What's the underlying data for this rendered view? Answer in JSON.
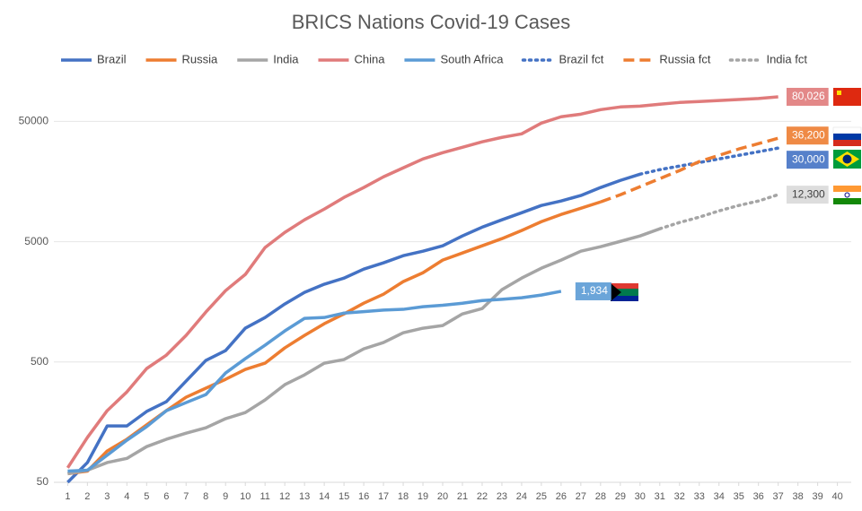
{
  "chart_data": {
    "type": "line",
    "title": "BRICS Nations Covid-19 Cases",
    "x": [
      1,
      2,
      3,
      4,
      5,
      6,
      7,
      8,
      9,
      10,
      11,
      12,
      13,
      14,
      15,
      16,
      17,
      18,
      19,
      20,
      21,
      22,
      23,
      24,
      25,
      26,
      27,
      28,
      29,
      30,
      31,
      32,
      33,
      34,
      35,
      36,
      37
    ],
    "xlim": [
      0.3,
      40.7
    ],
    "xticks": [
      1,
      2,
      3,
      4,
      5,
      6,
      7,
      8,
      9,
      10,
      11,
      12,
      13,
      14,
      15,
      16,
      17,
      18,
      19,
      20,
      21,
      22,
      23,
      24,
      25,
      26,
      27,
      28,
      29,
      30,
      31,
      32,
      33,
      34,
      35,
      36,
      37,
      38,
      39,
      40
    ],
    "ylim": [
      50,
      100000
    ],
    "yticks": [
      50,
      500,
      5000,
      50000
    ],
    "log_y": true,
    "grid": true,
    "legend": "top",
    "series": [
      {
        "name": "Brazil",
        "color": "#4472c4",
        "dash": "solid",
        "values": [
          50,
          73,
          147,
          147,
          194,
          234,
          347,
          515,
          622,
          955,
          1172,
          1517,
          1895,
          2215,
          2490,
          2960,
          3335,
          3825,
          4170,
          4620,
          5580,
          6600,
          7600,
          8700,
          10000,
          10900,
          12100,
          14100,
          16150,
          18200,
          null,
          null,
          null,
          null,
          null,
          null,
          null
        ]
      },
      {
        "name": "Russia",
        "color": "#ed7d31",
        "dash": "solid",
        "values": [
          59,
          62,
          91,
          114,
          150,
          197,
          255,
          303,
          359,
          434,
          489,
          655,
          832,
          1040,
          1255,
          1542,
          1830,
          2330,
          2760,
          3515,
          4030,
          4620,
          5300,
          6190,
          7340,
          8420,
          9480,
          10700,
          null,
          null,
          null,
          null,
          null,
          null,
          null,
          null,
          null
        ]
      },
      {
        "name": "India",
        "color": "#a5a5a5",
        "dash": "solid",
        "values": [
          59,
          63,
          73,
          79,
          99,
          114,
          128,
          142,
          169,
          190,
          242,
          324,
          391,
          489,
          524,
          643,
          726,
          875,
          955,
          1005,
          1255,
          1390,
          1995,
          2490,
          3010,
          3515,
          4170,
          4540,
          5030,
          5580,
          6400,
          null,
          null,
          null,
          null,
          null,
          null
        ]
      },
      {
        "name": "China",
        "color": "#e07b7b",
        "dash": "solid",
        "values": [
          66,
          118,
          197,
          282,
          441,
          570,
          832,
          1300,
          1960,
          2670,
          4470,
          5970,
          7600,
          9330,
          11660,
          14100,
          17300,
          20550,
          24370,
          27480,
          30470,
          33800,
          36800,
          39400,
          48400,
          54600,
          57400,
          62600,
          65900,
          67000,
          69400,
          71800,
          73100,
          74600,
          76000,
          77500,
          80026
        ],
        "value_labels": [
          null,
          null,
          null,
          null,
          null,
          null,
          null,
          null,
          null,
          null,
          null,
          null,
          null,
          null,
          null,
          null,
          null,
          null,
          null,
          null,
          null,
          null,
          null,
          null,
          null,
          null,
          null,
          null,
          null,
          null,
          null,
          null,
          null,
          null,
          null,
          null,
          "80,026"
        ]
      },
      {
        "name": "South Africa",
        "color": "#5b9bd5",
        "dash": "solid",
        "values": [
          62,
          63,
          84,
          112,
          145,
          197,
          230,
          268,
          405,
          533,
          690,
          906,
          1153,
          1172,
          1275,
          1310,
          1350,
          1370,
          1440,
          1480,
          1540,
          1620,
          1660,
          1710,
          1800,
          1934,
          null,
          null,
          null,
          null,
          null,
          null,
          null,
          null,
          null,
          null,
          null
        ],
        "value_labels": [
          null,
          null,
          null,
          null,
          null,
          null,
          null,
          null,
          null,
          null,
          null,
          null,
          null,
          null,
          null,
          null,
          null,
          null,
          null,
          null,
          null,
          null,
          null,
          null,
          null,
          "1,934",
          null,
          null,
          null,
          null,
          null,
          null,
          null,
          null,
          null,
          null,
          null
        ]
      },
      {
        "name": "Brazil fct",
        "color": "#4472c4",
        "dash": "dotted",
        "values": [
          null,
          null,
          null,
          null,
          null,
          null,
          null,
          null,
          null,
          null,
          null,
          null,
          null,
          null,
          null,
          null,
          null,
          null,
          null,
          null,
          null,
          null,
          null,
          null,
          null,
          null,
          null,
          null,
          null,
          18200,
          19850,
          21260,
          22750,
          24370,
          26100,
          27980,
          30000
        ],
        "value_labels": [
          null,
          null,
          null,
          null,
          null,
          null,
          null,
          null,
          null,
          null,
          null,
          null,
          null,
          null,
          null,
          null,
          null,
          null,
          null,
          null,
          null,
          null,
          null,
          null,
          null,
          null,
          null,
          null,
          null,
          null,
          null,
          null,
          null,
          null,
          null,
          null,
          "30,000"
        ]
      },
      {
        "name": "Russia fct",
        "color": "#ed7d31",
        "dash": "dashed",
        "values": [
          null,
          null,
          null,
          null,
          null,
          null,
          null,
          null,
          null,
          null,
          null,
          null,
          null,
          null,
          null,
          null,
          null,
          null,
          null,
          null,
          null,
          null,
          null,
          null,
          null,
          null,
          null,
          10700,
          12280,
          14320,
          16720,
          19500,
          23170,
          26100,
          29450,
          32650,
          36200
        ],
        "value_labels": [
          null,
          null,
          null,
          null,
          null,
          null,
          null,
          null,
          null,
          null,
          null,
          null,
          null,
          null,
          null,
          null,
          null,
          null,
          null,
          null,
          null,
          null,
          null,
          null,
          null,
          null,
          null,
          null,
          null,
          null,
          null,
          null,
          null,
          null,
          null,
          null,
          "36,200"
        ]
      },
      {
        "name": "India fct",
        "color": "#a5a5a5",
        "dash": "dotted",
        "values": [
          null,
          null,
          null,
          null,
          null,
          null,
          null,
          null,
          null,
          null,
          null,
          null,
          null,
          null,
          null,
          null,
          null,
          null,
          null,
          null,
          null,
          null,
          null,
          null,
          null,
          null,
          null,
          null,
          null,
          null,
          6400,
          7220,
          8000,
          9020,
          10000,
          10900,
          12300
        ],
        "value_labels": [
          null,
          null,
          null,
          null,
          null,
          null,
          null,
          null,
          null,
          null,
          null,
          null,
          null,
          null,
          null,
          null,
          null,
          null,
          null,
          null,
          null,
          null,
          null,
          null,
          null,
          null,
          null,
          null,
          null,
          null,
          null,
          null,
          null,
          null,
          null,
          null,
          "12,300"
        ]
      }
    ]
  }
}
